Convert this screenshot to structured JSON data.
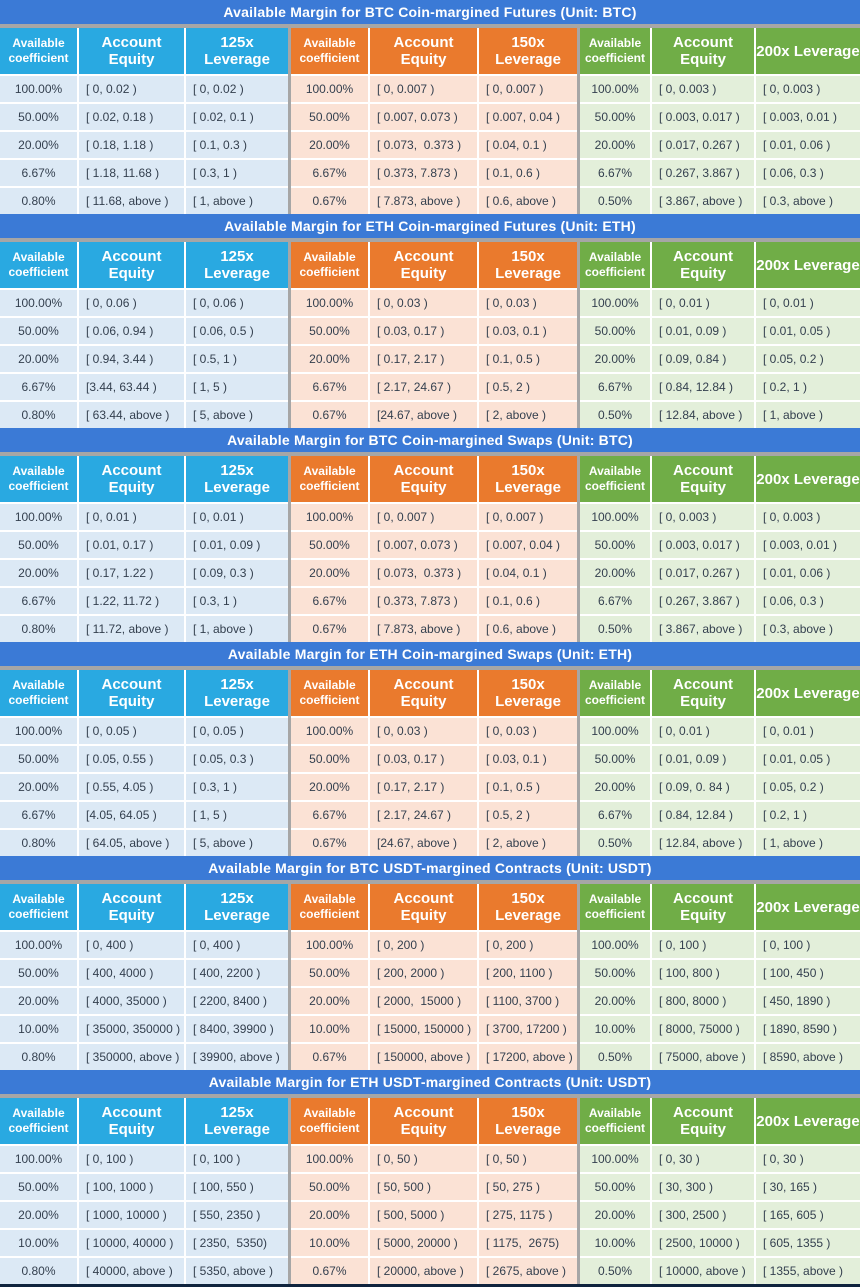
{
  "colors": {
    "title_bar_bg": "#3B7AD6",
    "header_blue": "#29A9E1",
    "header_orange": "#EA7A2D",
    "header_green": "#70AD47",
    "row_blue": "#DCE9F5",
    "row_orange": "#FBE2D5",
    "row_green": "#E3EFDA",
    "separator_gray": "#A6A6A6",
    "grid_white": "#FFFFFF",
    "text_dark": "#333F4E",
    "text_white": "#FFFFFF",
    "bottom_bar": "#10243E"
  },
  "headers": {
    "coefficient": "Available coefficient",
    "equity": "Account Equity"
  },
  "tables": [
    {
      "title": "Available Margin for BTC Coin-margined Futures (Unit: BTC)",
      "groups": [
        {
          "color": "blue",
          "leverage_label": "125x Leverage",
          "rows": [
            [
              "100.00%",
              "[ 0, 0.02 )",
              "[ 0, 0.02 )"
            ],
            [
              "50.00%",
              "[ 0.02, 0.18 )",
              "[ 0.02, 0.1 )"
            ],
            [
              "20.00%",
              "[ 0.18, 1.18 )",
              "[ 0.1, 0.3 )"
            ],
            [
              "6.67%",
              "[ 1.18, 11.68 )",
              "[ 0.3, 1 )"
            ],
            [
              "0.80%",
              "[ 11.68, above )",
              "[ 1, above )"
            ]
          ]
        },
        {
          "color": "orange",
          "leverage_label": "150x Leverage",
          "rows": [
            [
              "100.00%",
              "[ 0, 0.007 )",
              "[ 0, 0.007 )"
            ],
            [
              "50.00%",
              "[ 0.007, 0.073 )",
              "[ 0.007, 0.04 )"
            ],
            [
              "20.00%",
              "[ 0.073,  0.373 )",
              "[ 0.04, 0.1 )"
            ],
            [
              "6.67%",
              "[ 0.373, 7.873 )",
              "[ 0.1, 0.6 )"
            ],
            [
              "0.67%",
              "[ 7.873, above )",
              "[ 0.6, above )"
            ]
          ]
        },
        {
          "color": "green",
          "leverage_label": "200x Leverage",
          "rows": [
            [
              "100.00%",
              "[ 0, 0.003 )",
              "[ 0, 0.003 )"
            ],
            [
              "50.00%",
              "[ 0.003, 0.017 )",
              "[ 0.003, 0.01 )"
            ],
            [
              "20.00%",
              "[ 0.017, 0.267 )",
              "[ 0.01, 0.06 )"
            ],
            [
              "6.67%",
              "[ 0.267, 3.867 )",
              "[ 0.06, 0.3 )"
            ],
            [
              "0.50%",
              "[ 3.867, above )",
              "[ 0.3, above )"
            ]
          ]
        }
      ]
    },
    {
      "title": "Available Margin for ETH Coin-margined Futures (Unit: ETH)",
      "groups": [
        {
          "color": "blue",
          "leverage_label": "125x Leverage",
          "rows": [
            [
              "100.00%",
              "[ 0, 0.06 )",
              "[ 0, 0.06 )"
            ],
            [
              "50.00%",
              "[ 0.06, 0.94 )",
              "[ 0.06, 0.5 )"
            ],
            [
              "20.00%",
              "[ 0.94, 3.44 )",
              "[ 0.5, 1 )"
            ],
            [
              "6.67%",
              "[3.44, 63.44 )",
              "[ 1, 5 )"
            ],
            [
              "0.80%",
              "[ 63.44, above )",
              "[ 5, above )"
            ]
          ]
        },
        {
          "color": "orange",
          "leverage_label": "150x Leverage",
          "rows": [
            [
              "100.00%",
              "[ 0, 0.03 )",
              "[ 0, 0.03 )"
            ],
            [
              "50.00%",
              "[ 0.03, 0.17 )",
              "[ 0.03, 0.1 )"
            ],
            [
              "20.00%",
              "[ 0.17, 2.17 )",
              "[ 0.1, 0.5 )"
            ],
            [
              "6.67%",
              "[ 2.17, 24.67 )",
              "[ 0.5, 2 )"
            ],
            [
              "0.67%",
              "[24.67, above )",
              "[ 2, above )"
            ]
          ]
        },
        {
          "color": "green",
          "leverage_label": "200x Leverage",
          "rows": [
            [
              "100.00%",
              "[ 0, 0.01 )",
              "[ 0, 0.01 )"
            ],
            [
              "50.00%",
              "[ 0.01, 0.09 )",
              "[ 0.01, 0.05 )"
            ],
            [
              "20.00%",
              "[ 0.09, 0.84 )",
              "[ 0.05, 0.2 )"
            ],
            [
              "6.67%",
              "[ 0.84, 12.84 )",
              "[ 0.2, 1 )"
            ],
            [
              "0.50%",
              "[ 12.84, above )",
              "[ 1, above )"
            ]
          ]
        }
      ]
    },
    {
      "title": "Available Margin for BTC Coin-margined Swaps (Unit: BTC)",
      "groups": [
        {
          "color": "blue",
          "leverage_label": "125x Leverage",
          "rows": [
            [
              "100.00%",
              "[ 0, 0.01 )",
              "[ 0, 0.01 )"
            ],
            [
              "50.00%",
              "[ 0.01, 0.17 )",
              "[ 0.01, 0.09 )"
            ],
            [
              "20.00%",
              "[ 0.17, 1.22 )",
              "[ 0.09, 0.3 )"
            ],
            [
              "6.67%",
              "[ 1.22, 11.72 )",
              "[ 0.3, 1 )"
            ],
            [
              "0.80%",
              "[ 11.72, above )",
              "[ 1, above )"
            ]
          ]
        },
        {
          "color": "orange",
          "leverage_label": "150x Leverage",
          "rows": [
            [
              "100.00%",
              "[ 0, 0.007 )",
              "[ 0, 0.007 )"
            ],
            [
              "50.00%",
              "[ 0.007, 0.073 )",
              "[ 0.007, 0.04 )"
            ],
            [
              "20.00%",
              "[ 0.073,  0.373 )",
              "[ 0.04, 0.1 )"
            ],
            [
              "6.67%",
              "[ 0.373, 7.873 )",
              "[ 0.1, 0.6 )"
            ],
            [
              "0.67%",
              "[ 7.873, above )",
              "[ 0.6, above )"
            ]
          ]
        },
        {
          "color": "green",
          "leverage_label": "200x Leverage",
          "rows": [
            [
              "100.00%",
              "[ 0, 0.003 )",
              "[ 0, 0.003 )"
            ],
            [
              "50.00%",
              "[ 0.003, 0.017 )",
              "[ 0.003, 0.01 )"
            ],
            [
              "20.00%",
              "[ 0.017, 0.267 )",
              "[ 0.01, 0.06 )"
            ],
            [
              "6.67%",
              "[ 0.267, 3.867 )",
              "[ 0.06, 0.3 )"
            ],
            [
              "0.50%",
              "[ 3.867, above )",
              "[ 0.3, above )"
            ]
          ]
        }
      ]
    },
    {
      "title": "Available Margin for ETH Coin-margined Swaps (Unit: ETH)",
      "groups": [
        {
          "color": "blue",
          "leverage_label": "125x Leverage",
          "rows": [
            [
              "100.00%",
              "[ 0, 0.05 )",
              "[ 0, 0.05 )"
            ],
            [
              "50.00%",
              "[ 0.05, 0.55 )",
              "[ 0.05, 0.3 )"
            ],
            [
              "20.00%",
              "[ 0.55, 4.05 )",
              "[ 0.3, 1 )"
            ],
            [
              "6.67%",
              "[4.05, 64.05 )",
              "[ 1, 5 )"
            ],
            [
              "0.80%",
              "[ 64.05, above )",
              "[ 5, above )"
            ]
          ]
        },
        {
          "color": "orange",
          "leverage_label": "150x Leverage",
          "rows": [
            [
              "100.00%",
              "[ 0, 0.03 )",
              "[ 0, 0.03 )"
            ],
            [
              "50.00%",
              "[ 0.03, 0.17 )",
              "[ 0.03, 0.1 )"
            ],
            [
              "20.00%",
              "[ 0.17, 2.17 )",
              "[ 0.1, 0.5 )"
            ],
            [
              "6.67%",
              "[ 2.17, 24.67 )",
              "[ 0.5, 2 )"
            ],
            [
              "0.67%",
              "[24.67, above )",
              "[ 2, above )"
            ]
          ]
        },
        {
          "color": "green",
          "leverage_label": "200x Leverage",
          "rows": [
            [
              "100.00%",
              "[ 0, 0.01 )",
              "[ 0, 0.01 )"
            ],
            [
              "50.00%",
              "[ 0.01, 0.09 )",
              "[ 0.01, 0.05 )"
            ],
            [
              "20.00%",
              "[ 0.09, 0. 84 )",
              "[ 0.05, 0.2 )"
            ],
            [
              "6.67%",
              "[ 0.84, 12.84 )",
              "[ 0.2, 1 )"
            ],
            [
              "0.50%",
              "[ 12.84, above )",
              "[ 1, above )"
            ]
          ]
        }
      ]
    },
    {
      "title": "Available Margin for BTC USDT-margined Contracts (Unit: USDT)",
      "groups": [
        {
          "color": "blue",
          "leverage_label": "125x Leverage",
          "rows": [
            [
              "100.00%",
              "[ 0, 400 )",
              "[ 0, 400 )"
            ],
            [
              "50.00%",
              "[ 400, 4000 )",
              "[ 400, 2200 )"
            ],
            [
              "20.00%",
              "[ 4000, 35000 )",
              "[ 2200, 8400 )"
            ],
            [
              "10.00%",
              "[ 35000, 350000 )",
              "[ 8400, 39900 )"
            ],
            [
              "0.80%",
              "[ 350000, above )",
              "[ 39900, above )"
            ]
          ]
        },
        {
          "color": "orange",
          "leverage_label": "150x Leverage",
          "rows": [
            [
              "100.00%",
              "[ 0, 200 )",
              "[ 0, 200 )"
            ],
            [
              "50.00%",
              "[ 200, 2000 )",
              "[ 200, 1100 )"
            ],
            [
              "20.00%",
              "[ 2000,  15000 )",
              "[ 1100, 3700 )"
            ],
            [
              "10.00%",
              "[ 15000, 150000 )",
              "[ 3700, 17200 )"
            ],
            [
              "0.67%",
              "[ 150000, above )",
              "[ 17200, above )"
            ]
          ]
        },
        {
          "color": "green",
          "leverage_label": "200x Leverage",
          "rows": [
            [
              "100.00%",
              "[ 0, 100 )",
              "[ 0, 100 )"
            ],
            [
              "50.00%",
              "[ 100, 800 )",
              "[ 100, 450 )"
            ],
            [
              "20.00%",
              "[ 800, 8000 )",
              "[ 450, 1890 )"
            ],
            [
              "10.00%",
              "[ 8000, 75000 )",
              "[ 1890, 8590 )"
            ],
            [
              "0.50%",
              "[ 75000, above )",
              "[ 8590, above )"
            ]
          ]
        }
      ]
    },
    {
      "title": "Available Margin for ETH USDT-margined Contracts (Unit: USDT)",
      "groups": [
        {
          "color": "blue",
          "leverage_label": "125x Leverage",
          "rows": [
            [
              "100.00%",
              "[ 0, 100 )",
              "[ 0, 100 )"
            ],
            [
              "50.00%",
              "[ 100, 1000 )",
              "[ 100, 550 )"
            ],
            [
              "20.00%",
              "[ 1000, 10000 )",
              "[ 550, 2350 )"
            ],
            [
              "10.00%",
              "[ 10000, 40000 )",
              "[ 2350,  5350)"
            ],
            [
              "0.80%",
              "[ 40000, above )",
              "[ 5350, above )"
            ]
          ]
        },
        {
          "color": "orange",
          "leverage_label": "150x Leverage",
          "rows": [
            [
              "100.00%",
              "[ 0, 50 )",
              "[ 0, 50 )"
            ],
            [
              "50.00%",
              "[ 50, 500 )",
              "[ 50, 275 )"
            ],
            [
              "20.00%",
              "[ 500, 5000 )",
              "[ 275, 1175 )"
            ],
            [
              "10.00%",
              "[ 5000, 20000 )",
              "[ 1175,  2675)"
            ],
            [
              "0.67%",
              "[ 20000, above )",
              "[ 2675, above )"
            ]
          ]
        },
        {
          "color": "green",
          "leverage_label": "200x Leverage",
          "rows": [
            [
              "100.00%",
              "[ 0, 30 )",
              "[ 0, 30 )"
            ],
            [
              "50.00%",
              "[ 30, 300 )",
              "[ 30, 165 )"
            ],
            [
              "20.00%",
              "[ 300, 2500 )",
              "[ 165, 605 )"
            ],
            [
              "10.00%",
              "[ 2500, 10000 )",
              "[ 605, 1355 )"
            ],
            [
              "0.50%",
              "[ 10000, above )",
              "[ 1355, above )"
            ]
          ]
        }
      ]
    }
  ]
}
